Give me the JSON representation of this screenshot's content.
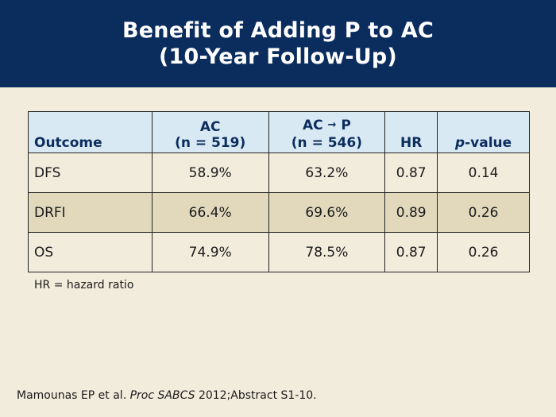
{
  "slide": {
    "title_line1": "Benefit of Adding P to AC",
    "title_line2": "(10-Year Follow-Up)"
  },
  "table": {
    "headers": {
      "outcome": "Outcome",
      "ac_name": "AC",
      "ac_n": "(n = 519)",
      "acp_left": "AC",
      "acp_arrow": "→",
      "acp_right": "P",
      "acp_n": "(n = 546)",
      "hr": "HR",
      "p_prefix": "p",
      "p_suffix": "-value"
    },
    "rows": [
      {
        "outcome": "DFS",
        "ac": "58.9%",
        "acp": "63.2%",
        "hr": "0.87",
        "p": "0.14"
      },
      {
        "outcome": "DRFI",
        "ac": "66.4%",
        "acp": "69.6%",
        "hr": "0.89",
        "p": "0.26"
      },
      {
        "outcome": "OS",
        "ac": "74.9%",
        "acp": "78.5%",
        "hr": "0.87",
        "p": "0.26"
      }
    ]
  },
  "footnote": "HR = hazard ratio",
  "citation": {
    "authors": "Mamounas EP et al.",
    "journal": "Proc SABCS",
    "details": "2012;Abstract S1-10."
  },
  "colors": {
    "header_bg": "#0b2d5e",
    "page_bg": "#f2ecdc",
    "table_header_bg": "#d9e9f3",
    "row_shaded_bg": "#e2d9bd"
  }
}
